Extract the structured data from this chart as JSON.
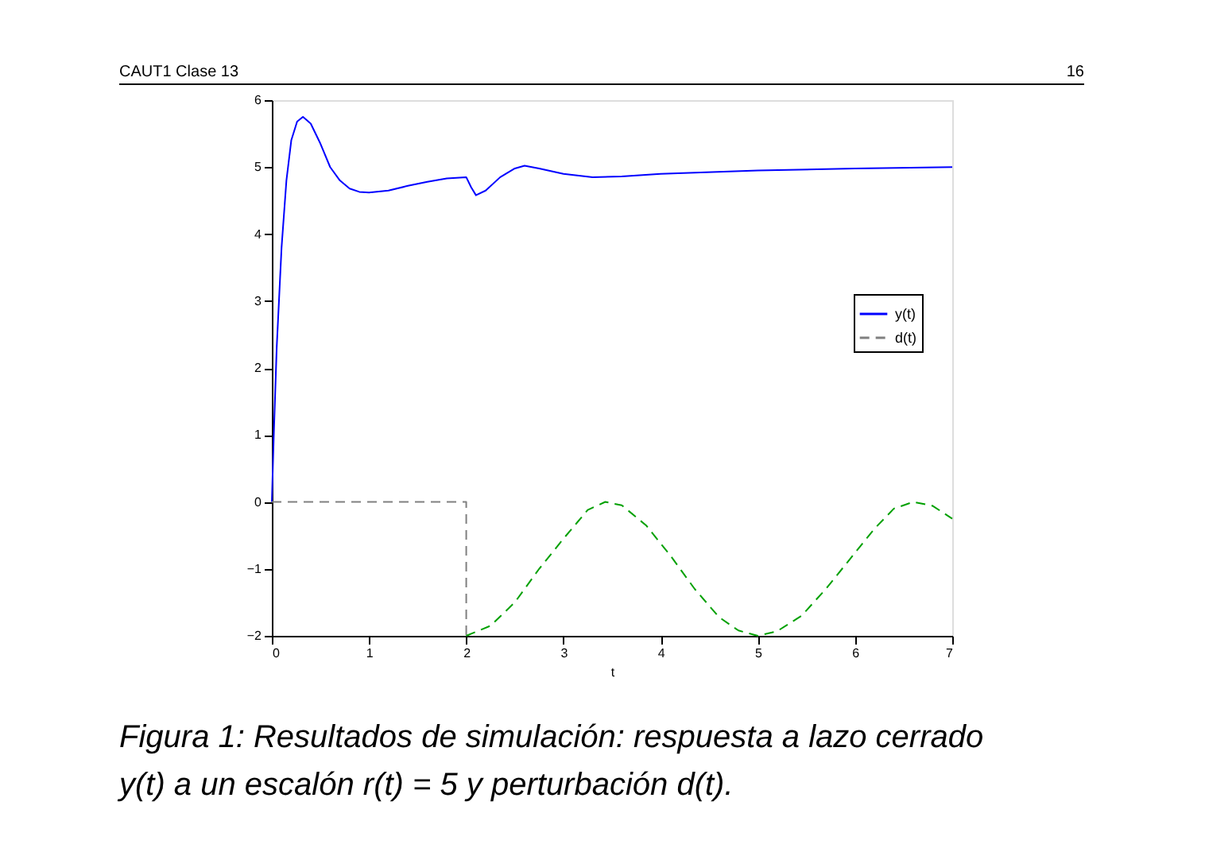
{
  "chart_data": {
    "type": "line",
    "xlabel": "t",
    "series": [
      {
        "name": "y(t)",
        "color": "#0000ff",
        "line_style": "solid",
        "x": [
          0,
          0.02,
          0.05,
          0.1,
          0.15,
          0.2,
          0.26,
          0.32,
          0.4,
          0.5,
          0.6,
          0.7,
          0.8,
          0.9,
          1.0,
          1.2,
          1.4,
          1.6,
          1.8,
          2.0,
          2.05,
          2.1,
          2.2,
          2.35,
          2.5,
          2.6,
          2.75,
          3.0,
          3.3,
          3.6,
          4.0,
          5.0,
          6.0,
          7.0
        ],
        "values": [
          0,
          1.0,
          2.3,
          3.8,
          4.8,
          5.4,
          5.68,
          5.75,
          5.65,
          5.35,
          5.0,
          4.8,
          4.68,
          4.63,
          4.62,
          4.65,
          4.72,
          4.78,
          4.83,
          4.85,
          4.7,
          4.58,
          4.65,
          4.85,
          4.98,
          5.02,
          4.98,
          4.9,
          4.85,
          4.86,
          4.9,
          4.95,
          4.98,
          5.0
        ]
      },
      {
        "name": "d(t)",
        "color": "#808080",
        "line_style": "dashed",
        "x": [
          0,
          2,
          2
        ],
        "values": [
          0,
          0,
          -2
        ]
      },
      {
        "color": "#00a000",
        "line_style": "dashed",
        "x": [
          2,
          2.25,
          2.5,
          2.75,
          3.0,
          3.25,
          3.43,
          3.6,
          3.85,
          4.1,
          4.35,
          4.6,
          4.8,
          5.0,
          5.2,
          5.45,
          5.7,
          5.95,
          6.2,
          6.4,
          6.6,
          6.8,
          7.0
        ],
        "values": [
          -2,
          -1.85,
          -1.5,
          -1.0,
          -0.55,
          -0.12,
          0,
          -0.05,
          -0.35,
          -0.8,
          -1.3,
          -1.72,
          -1.92,
          -2,
          -1.93,
          -1.7,
          -1.3,
          -0.85,
          -0.4,
          -0.1,
          0,
          -0.06,
          -0.25
        ]
      }
    ],
    "xlim": [
      0,
      7
    ],
    "xticks": [
      0,
      1,
      2,
      3,
      4,
      5,
      6,
      7
    ],
    "ylim": [
      -2,
      6
    ],
    "yticks": [
      -2,
      -1,
      0,
      1,
      2,
      3,
      4,
      5,
      6
    ],
    "grid": false,
    "legend": "right",
    "annotations": [
      "CAUT1 Clase 13",
      "16",
      "Figura 1: Resultados de simulación: respuesta a lazo cerrado",
      "y(t) a un escalón r(t) = 5 y perturbación d(t)."
    ]
  }
}
